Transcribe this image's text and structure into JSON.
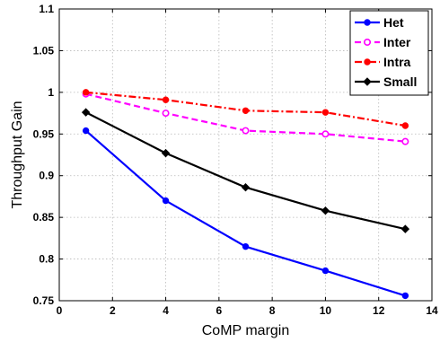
{
  "chart_data": {
    "type": "line",
    "xlabel": "CoMP margin",
    "ylabel": "Throughput Gain",
    "xlim": [
      0,
      14
    ],
    "ylim": [
      0.75,
      1.1
    ],
    "x_ticks": [
      "0",
      "2",
      "4",
      "6",
      "8",
      "10",
      "12",
      "14"
    ],
    "y_ticks": [
      "0.75",
      "0.8",
      "0.85",
      "0.9",
      "0.95",
      "1",
      "1.05",
      "1.1"
    ],
    "grid": true,
    "legend_position": "top-right",
    "x": [
      1,
      4,
      7,
      10,
      13
    ],
    "series": [
      {
        "name": "Het",
        "values": [
          0.954,
          0.87,
          0.815,
          0.786,
          0.756
        ],
        "color": "#0000ff",
        "line_style": "solid",
        "marker": "filled-circle"
      },
      {
        "name": "Inter",
        "values": [
          0.998,
          0.975,
          0.954,
          0.95,
          0.941
        ],
        "color": "#ff00ff",
        "line_style": "dashed",
        "marker": "open-circle"
      },
      {
        "name": "Intra",
        "values": [
          1.0,
          0.991,
          0.978,
          0.976,
          0.96
        ],
        "color": "#ff0000",
        "line_style": "dash-dot",
        "marker": "filled-circle"
      },
      {
        "name": "Small",
        "values": [
          0.976,
          0.927,
          0.886,
          0.858,
          0.836
        ],
        "color": "#000000",
        "line_style": "solid",
        "marker": "diamond"
      }
    ]
  }
}
